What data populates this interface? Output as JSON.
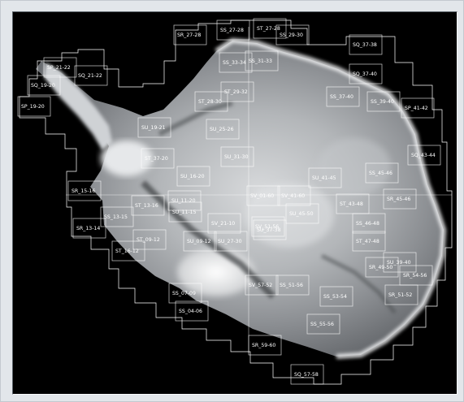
{
  "map": {
    "title": "",
    "background_color": "#000000",
    "frame_color": "#e2e6ea",
    "tile_outline_color": "#ffffff",
    "tiles": [
      "SR_27-28",
      "SS_27-28",
      "ST_27-28",
      "SS_29-30",
      "SS_31-33",
      "SS_33-34",
      "SQ_37-38",
      "SP_21-22",
      "SQ_21-22",
      "SQ_19-20",
      "SP_19-20",
      "ST_28-30",
      "ST_29-32",
      "SS_39-40",
      "SQ_37-40",
      "SS_37-40",
      "SP_41-42",
      "SQ_43-44",
      "SU_19-21",
      "SU_25-26",
      "SU_31-30",
      "ST_37-20",
      "SU_16-20",
      "SU_11-20",
      "SV_01-60",
      "SV_41-60",
      "SU_41-45",
      "ST_43-48",
      "SS_45-46",
      "SR_45-46",
      "SR_15-16",
      "ST_13-16",
      "SU_11-15",
      "SS_13-15",
      "SR_13-14",
      "SV_21-10",
      "ST_09-12",
      "SU_09-12",
      "SS_07-09",
      "SS_04-06",
      "ST_16-12",
      "SU_45-50",
      "SS_46-48",
      "ST_47-48",
      "SR_49-50",
      "SR_51-52",
      "SS_53-54",
      "SS_51-56",
      "SS_55-56",
      "SR_59-60",
      "SQ_57-58",
      "SR_54-56",
      "SV_51-56",
      "SV_57-52",
      "SU_27-30",
      "SU_37-38",
      "SU_39-40"
    ]
  }
}
